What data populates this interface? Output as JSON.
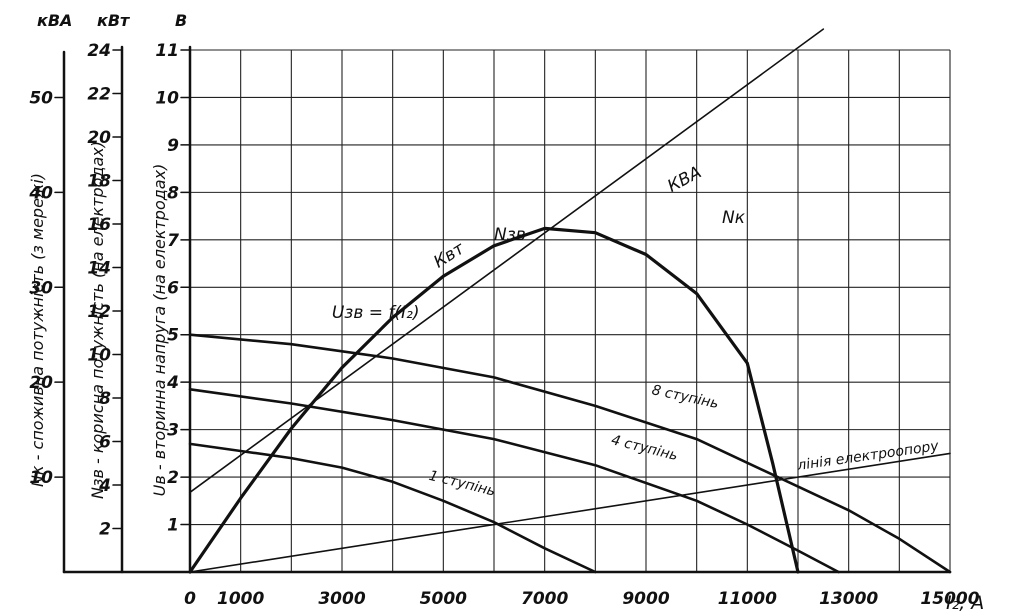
{
  "chart_data": {
    "type": "line",
    "xlabel": "I₂, A",
    "x_ticks": [
      0,
      1000,
      3000,
      5000,
      7000,
      9000,
      11000,
      13000,
      15000
    ],
    "x_tick_labels": [
      "0",
      "1000",
      "3000",
      "5000",
      "7000",
      "9000",
      "11000",
      "13000",
      "15000"
    ],
    "xlim": [
      0,
      15000
    ],
    "axes": [
      {
        "unit": "кВА",
        "label": "Nк - споживна потужність (з мережі)",
        "range": [
          0,
          55
        ],
        "ticks": [
          10,
          20,
          30,
          40,
          50
        ]
      },
      {
        "unit": "кВт",
        "label": "Nзв - корисна потужність (на електродах)",
        "range": [
          0,
          24
        ],
        "ticks": [
          2,
          4,
          6,
          8,
          10,
          12,
          14,
          16,
          18,
          20,
          22,
          24
        ]
      },
      {
        "unit": "В",
        "label": "Uв - вторинна напруга (на електродах)",
        "range": [
          0,
          11
        ],
        "ticks": [
          1,
          2,
          3,
          4,
          5,
          6,
          7,
          8,
          9,
          10,
          11
        ]
      }
    ],
    "grid": true,
    "series": [
      {
        "name": "8 ступінь",
        "axis": "В",
        "x": [
          0,
          2000,
          4000,
          6000,
          8000,
          10000,
          11500,
          13000,
          14000,
          15000
        ],
        "y": [
          5.0,
          4.8,
          4.5,
          4.1,
          3.5,
          2.8,
          2.05,
          1.3,
          0.7,
          0.0
        ]
      },
      {
        "name": "4 ступінь",
        "axis": "В",
        "x": [
          0,
          2000,
          4000,
          6000,
          8000,
          10000,
          11000,
          12000,
          12800
        ],
        "y": [
          3.85,
          3.55,
          3.2,
          2.8,
          2.25,
          1.5,
          1.0,
          0.45,
          0.0
        ]
      },
      {
        "name": "1 ступінь",
        "axis": "В",
        "x": [
          0,
          1000,
          2000,
          3000,
          4000,
          5000,
          6000,
          7000,
          8000
        ],
        "y": [
          2.7,
          2.55,
          2.4,
          2.2,
          1.9,
          1.5,
          1.05,
          0.5,
          0.0
        ]
      },
      {
        "name": "лінія електроопору",
        "axis": "В",
        "x": [
          0,
          15000
        ],
        "y": [
          0.0,
          2.5
        ]
      },
      {
        "name": "Nк",
        "axis": "кВА",
        "x": [
          0,
          12500
        ],
        "y": [
          8.4,
          57.2
        ]
      },
      {
        "name": "Nзв",
        "axis": "кВт",
        "x": [
          0,
          1000,
          2000,
          3000,
          4000,
          5000,
          6000,
          7000,
          8000,
          9000,
          10000,
          11000,
          11500,
          12000
        ],
        "y": [
          0.0,
          3.4,
          6.6,
          9.4,
          11.7,
          13.6,
          15.0,
          15.8,
          15.6,
          14.6,
          12.8,
          9.6,
          5.0,
          0.0
        ]
      }
    ],
    "annotations": [
      {
        "text": "КВА",
        "x": 9500,
        "y": 8.0
      },
      {
        "text": "Nк",
        "x": 10500,
        "y": 7.35
      },
      {
        "text": "Nзв",
        "x": 6000,
        "y": 7.0
      },
      {
        "text": "Квт",
        "x": 4900,
        "y": 6.4
      },
      {
        "text": "Uзв = f(I₂)",
        "x": 2800,
        "y": 5.35
      }
    ]
  }
}
